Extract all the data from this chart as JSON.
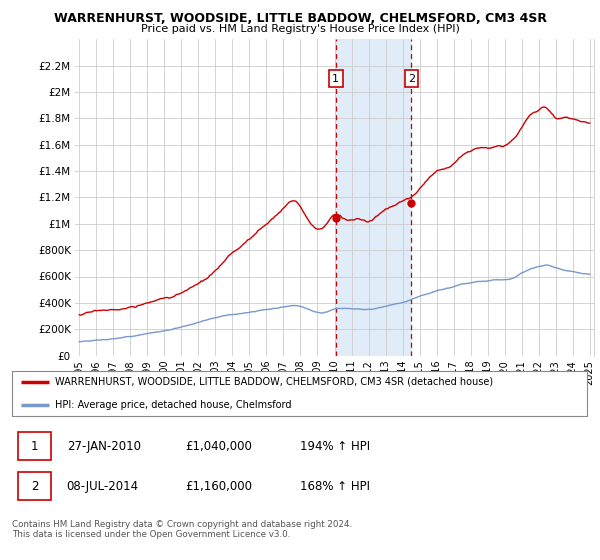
{
  "title": "WARRENHURST, WOODSIDE, LITTLE BADDOW, CHELMSFORD, CM3 4SR",
  "subtitle": "Price paid vs. HM Land Registry's House Price Index (HPI)",
  "ylim": [
    0,
    2400000
  ],
  "yticks": [
    0,
    200000,
    400000,
    600000,
    800000,
    1000000,
    1200000,
    1400000,
    1600000,
    1800000,
    2000000,
    2200000
  ],
  "ytick_labels": [
    "£0",
    "£200K",
    "£400K",
    "£600K",
    "£800K",
    "£1M",
    "£1.2M",
    "£1.4M",
    "£1.6M",
    "£1.8M",
    "£2M",
    "£2.2M"
  ],
  "xlim_start": 1994.75,
  "xlim_end": 2025.25,
  "xticks": [
    1995,
    1996,
    1997,
    1998,
    1999,
    2000,
    2001,
    2002,
    2003,
    2004,
    2005,
    2006,
    2007,
    2008,
    2009,
    2010,
    2011,
    2012,
    2013,
    2014,
    2015,
    2016,
    2017,
    2018,
    2019,
    2020,
    2021,
    2022,
    2023,
    2024,
    2025
  ],
  "red_line_color": "#cc0000",
  "blue_line_color": "#7799cc",
  "grid_color": "#cccccc",
  "highlight_x1": 2010.07,
  "highlight_x2": 2014.52,
  "highlight_color": "#e0ecf8",
  "highlight_border_color": "#cc0000",
  "marker1_x": 2010.07,
  "marker1_y": 2100000,
  "marker2_x": 2014.52,
  "marker2_y": 2100000,
  "sale1_y": 1040000,
  "sale2_y": 1160000,
  "legend_label_red": "WARRENHURST, WOODSIDE, LITTLE BADDOW, CHELMSFORD, CM3 4SR (detached house)",
  "legend_label_blue": "HPI: Average price, detached house, Chelmsford",
  "table_row1": [
    "1",
    "27-JAN-2010",
    "£1,040,000",
    "194% ↑ HPI"
  ],
  "table_row2": [
    "2",
    "08-JUL-2014",
    "£1,160,000",
    "168% ↑ HPI"
  ],
  "footer": "Contains HM Land Registry data © Crown copyright and database right 2024.\nThis data is licensed under the Open Government Licence v3.0."
}
